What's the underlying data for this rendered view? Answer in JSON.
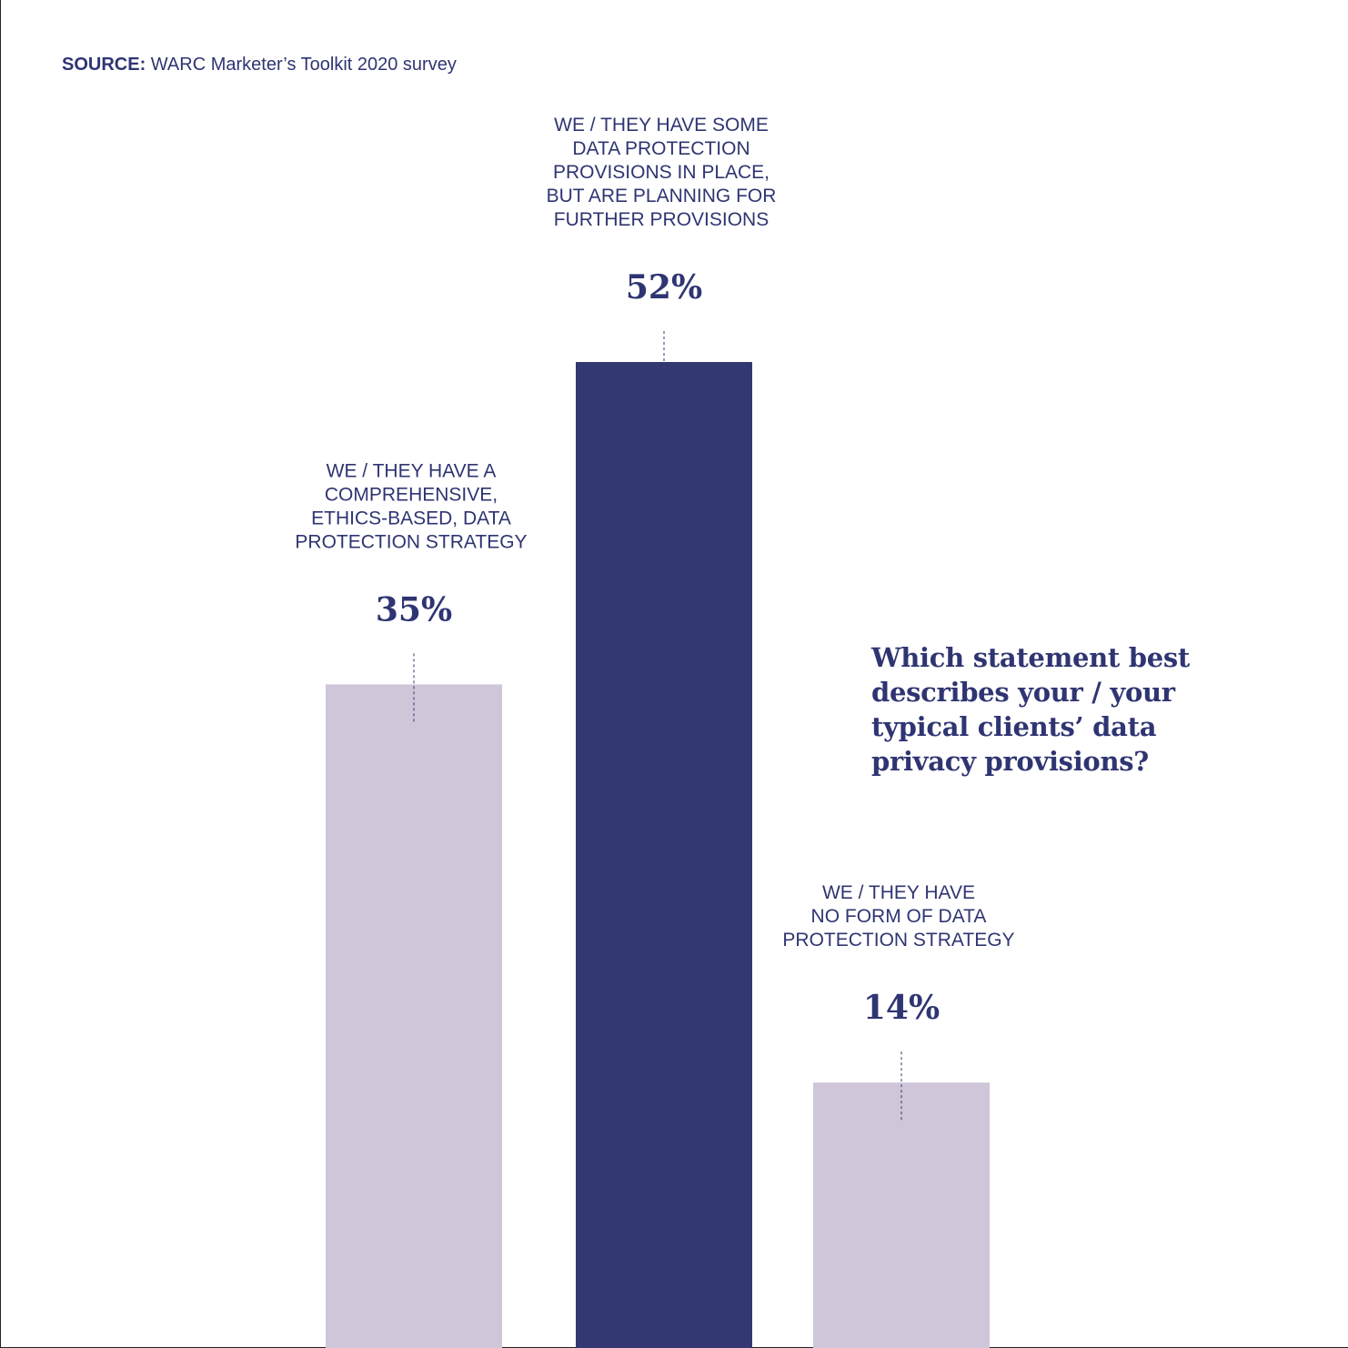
{
  "source": {
    "label": "SOURCE:",
    "text": "WARC Marketer’s Toolkit 2020 survey"
  },
  "question": "Which statement best describes your / your typical clients’ data privacy provisions?",
  "colors": {
    "text": "#2f3572",
    "highlight_bar": "#333873",
    "muted_bar": "#cfc6d9"
  },
  "chart_data": {
    "type": "bar",
    "title": "Which statement best describes your / your typical clients’ data privacy provisions?",
    "categories": [
      "WE / THEY HAVE A COMPREHENSIVE, ETHICS-BASED, DATA PROTECTION STRATEGY",
      "WE / THEY HAVE SOME DATA PROTECTION PROVISIONS IN PLACE, BUT ARE PLANNING FOR FURTHER PROVISIONS",
      "WE / THEY HAVE NO FORM OF DATA PROTECTION STRATEGY"
    ],
    "category_lines": [
      [
        "WE / THEY HAVE A",
        "COMPREHENSIVE,",
        "ETHICS-BASED, DATA",
        "PROTECTION STRATEGY"
      ],
      [
        "WE / THEY HAVE SOME",
        "DATA PROTECTION",
        "PROVISIONS IN PLACE,",
        "BUT ARE PLANNING FOR",
        "FURTHER PROVISIONS"
      ],
      [
        "WE / THEY HAVE",
        "NO FORM OF DATA",
        "PROTECTION STRATEGY"
      ]
    ],
    "values": [
      35,
      52,
      14
    ],
    "value_labels": [
      "35%",
      "52%",
      "14%"
    ],
    "highlight_index": 1,
    "ylim": [
      0,
      100
    ],
    "xlabel": "",
    "ylabel": "",
    "grid": false
  }
}
